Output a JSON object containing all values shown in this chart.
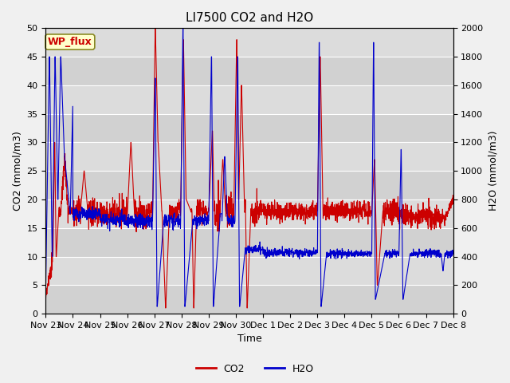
{
  "title": "LI7500 CO2 and H2O",
  "xlabel": "Time",
  "ylabel_left": "CO2 (mmol/m3)",
  "ylabel_right": "H2O (mmol/m3)",
  "ylim_left": [
    0,
    50
  ],
  "ylim_right": [
    0,
    2000
  ],
  "yticks_left": [
    0,
    5,
    10,
    15,
    20,
    25,
    30,
    35,
    40,
    45,
    50
  ],
  "yticks_right": [
    0,
    200,
    400,
    600,
    800,
    1000,
    1200,
    1400,
    1600,
    1800,
    2000
  ],
  "xtick_labels": [
    "Nov 23",
    "Nov 24",
    "Nov 25",
    "Nov 26",
    "Nov 27",
    "Nov 28",
    "Nov 29",
    "Nov 30",
    "Dec 1",
    "Dec 2",
    "Dec 3",
    "Dec 4",
    "Dec 5",
    "Dec 6",
    "Dec 7",
    "Dec 8"
  ],
  "co2_color": "#cc0000",
  "h2o_color": "#0000cc",
  "fig_bg_color": "#f0f0f0",
  "plot_bg_color": "#dcdcdc",
  "grid_color": "#ffffff",
  "annotation_text": "WP_flux",
  "annotation_color": "#cc0000",
  "annotation_bg": "#ffffcc",
  "annotation_edge": "#888822",
  "legend_co2": "CO2",
  "legend_h2o": "H2O",
  "title_fontsize": 11,
  "axis_fontsize": 9,
  "tick_fontsize": 8,
  "legend_fontsize": 9,
  "linewidth": 0.8,
  "n_days": 15,
  "n_points_per_day": 144
}
